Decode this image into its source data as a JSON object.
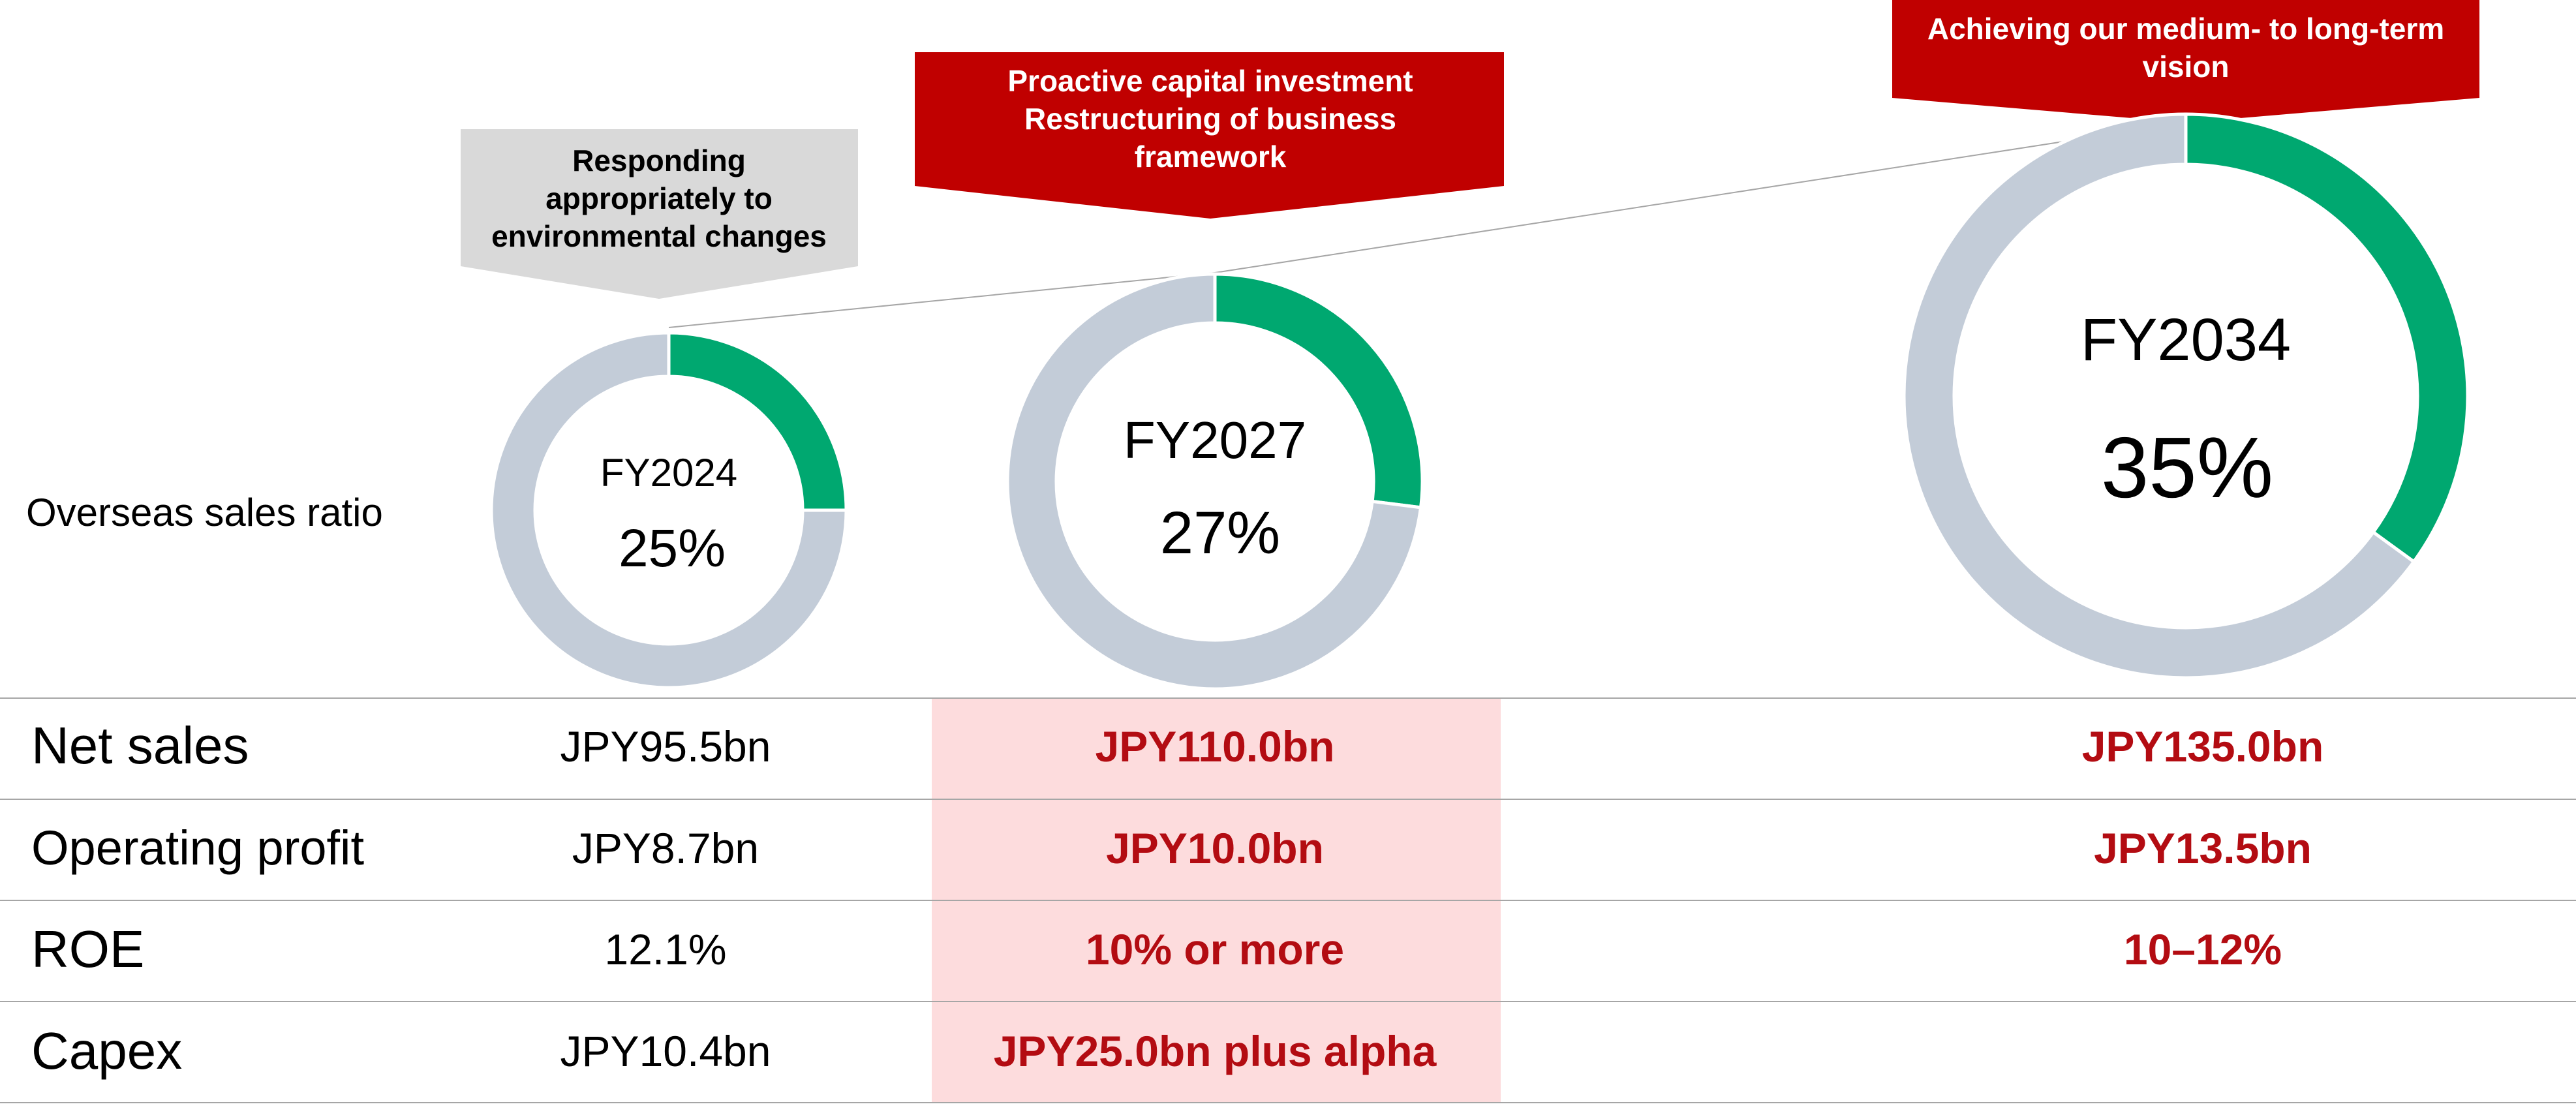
{
  "colors": {
    "overseas": "#00a870",
    "domestic": "#c3ccd8",
    "banner_red": "#c00000",
    "banner_gray": "#d9d9d9",
    "highlight_text": "#b30c12",
    "highlight_bg": "#fddcdd",
    "rule": "#a6a6a6"
  },
  "banners": [
    {
      "lines": [
        "Responding",
        "appropriately to",
        "environmental changes"
      ],
      "style": "gray"
    },
    {
      "lines": [
        "Proactive capital investment",
        "Restructuring of business",
        "framework"
      ],
      "style": "red"
    },
    {
      "lines": [
        "Achieving our medium- to long-term",
        "vision"
      ],
      "style": "red"
    }
  ],
  "row_label_overseas": "Overseas sales ratio",
  "chart_data": {
    "type": "pie",
    "title": "",
    "charts": [
      {
        "year": "FY2024",
        "label": "25%",
        "overseas_ratio": 25
      },
      {
        "year": "FY2027",
        "label": "27%",
        "overseas_ratio": 27
      },
      {
        "year": "FY2034",
        "label": "35%",
        "overseas_ratio": 35
      }
    ]
  },
  "table": {
    "rows": [
      {
        "label": "Net sales",
        "fy2024": "JPY95.5bn",
        "fy2027": "JPY110.0bn",
        "fy2034": "JPY135.0bn"
      },
      {
        "label": "Operating profit",
        "fy2024": "JPY8.7bn",
        "fy2027": "JPY10.0bn",
        "fy2034": "JPY13.5bn"
      },
      {
        "label": "ROE",
        "fy2024": "12.1%",
        "fy2027": "10% or more",
        "fy2034": "10–12%"
      },
      {
        "label": "Capex",
        "fy2024": "JPY10.4bn",
        "fy2027": "JPY25.0bn plus alpha",
        "fy2034": ""
      }
    ]
  }
}
